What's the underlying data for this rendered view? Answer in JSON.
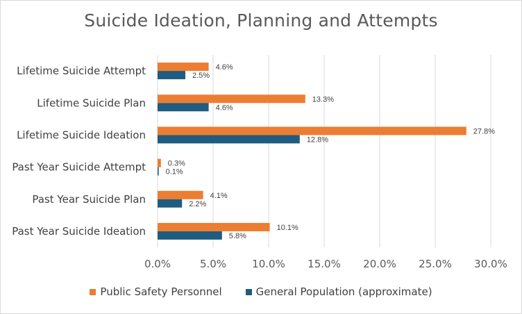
{
  "chart_data": {
    "type": "bar",
    "orientation": "horizontal",
    "title": "Suicide Ideation, Planning and Attempts",
    "categories": [
      "Lifetime Suicide Attempt",
      "Lifetime Suicide Plan",
      "Lifetime Suicide Ideation",
      "Past Year Suicide Attempt",
      "Past Year Suicide Plan",
      "Past Year Suicide Ideation"
    ],
    "series": [
      {
        "name": "Public Safety Personnel",
        "color": "#ED7D31",
        "values": [
          4.6,
          13.3,
          27.8,
          0.3,
          4.1,
          10.1
        ],
        "labels": [
          "4.6%",
          "13.3%",
          "27.8%",
          "0.3%",
          "4.1%",
          "10.1%"
        ]
      },
      {
        "name": "General Population (approximate)",
        "color": "#1F5C7F",
        "values": [
          2.5,
          4.6,
          12.8,
          0.1,
          2.2,
          5.8
        ],
        "labels": [
          "2.5%",
          "4.6%",
          "12.8%",
          "0.1%",
          "2.2%",
          "5.8%"
        ]
      }
    ],
    "xlim": [
      0,
      30
    ],
    "xticks": [
      0,
      5,
      10,
      15,
      20,
      25,
      30
    ],
    "xtick_labels": [
      "0.0%",
      "5.0%",
      "10.0%",
      "15.0%",
      "20.0%",
      "25.0%",
      "30.0%"
    ],
    "xlabel": "",
    "ylabel": "",
    "grid": true,
    "legend_position": "bottom"
  }
}
